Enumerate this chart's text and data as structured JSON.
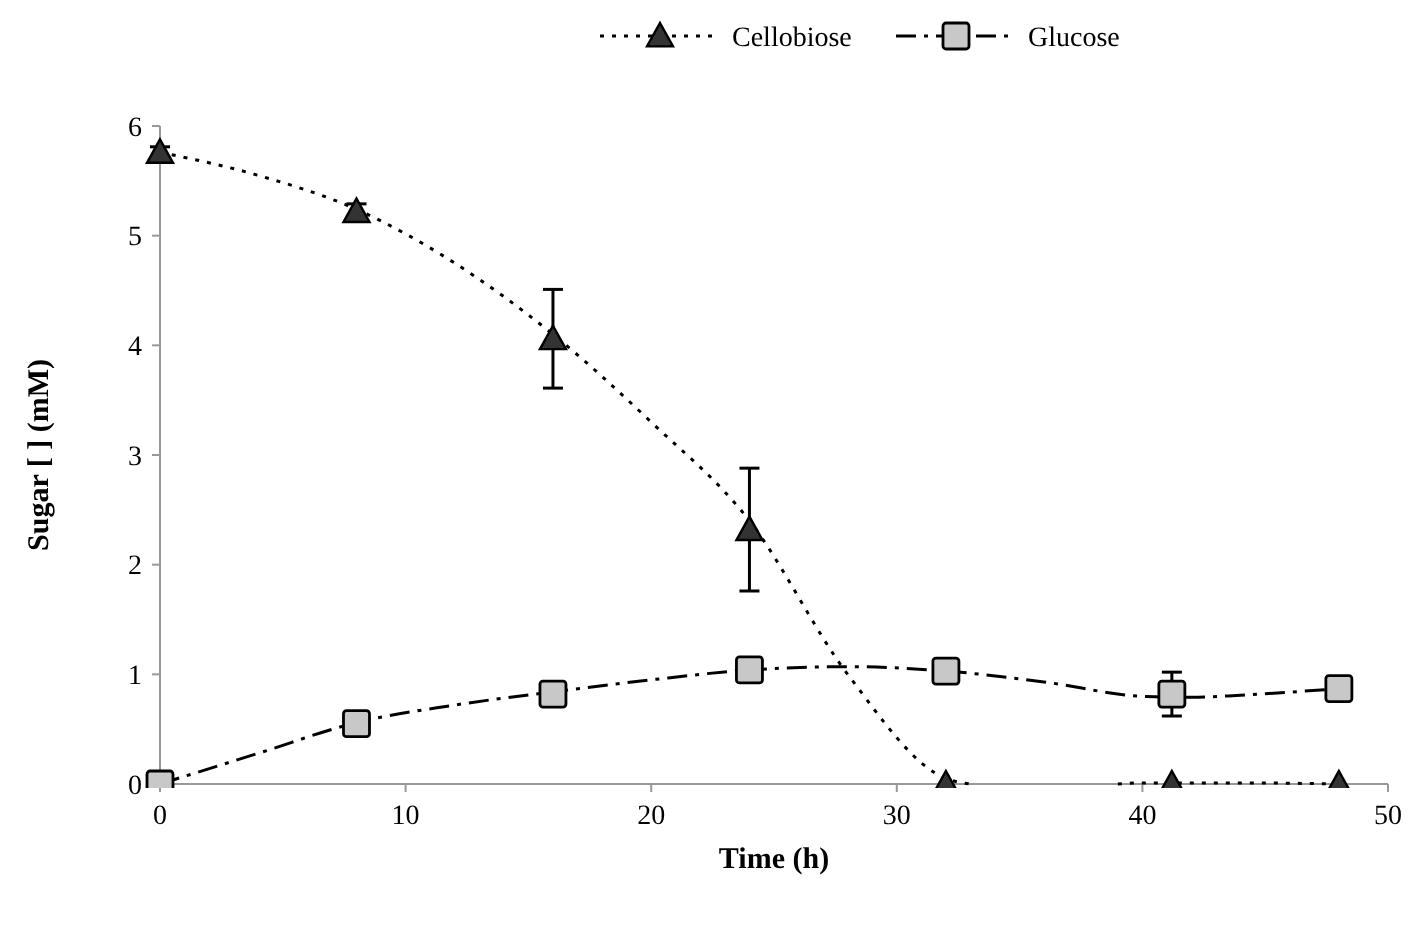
{
  "chart_data": {
    "type": "scatter",
    "xlabel": "Time (h)",
    "ylabel": "Sugar [ ] (mM)",
    "xlim": [
      0,
      50
    ],
    "xticks": [
      0,
      10,
      20,
      30,
      40,
      50
    ],
    "ylim": [
      0,
      6
    ],
    "yticks": [
      0,
      1,
      2,
      3,
      4,
      5,
      6
    ],
    "legend": "top",
    "grid": false,
    "series": [
      {
        "name": "Cellobiose",
        "marker": "triangle",
        "line_style": "dotted",
        "color": "#333333",
        "x": [
          0,
          8,
          16,
          24,
          32,
          41.2,
          48
        ],
        "values": [
          5.76,
          5.22,
          4.06,
          2.32,
          0,
          0,
          0
        ],
        "errors": [
          0.05,
          0.07,
          0.45,
          0.56,
          null,
          null,
          null
        ]
      },
      {
        "name": "Glucose",
        "marker": "square",
        "line_style": "dashdot",
        "color": "#c8c8c8",
        "x": [
          0,
          8,
          16,
          24,
          32,
          41.2,
          48
        ],
        "values": [
          0,
          0.55,
          0.82,
          1.04,
          1.03,
          0.82,
          0.87
        ],
        "errors": [
          null,
          null,
          null,
          null,
          null,
          0.2,
          null
        ]
      },
      {
        "type": "line",
        "line_style": "dotted",
        "color": "#000000",
        "x": [
          0,
          4,
          8,
          12,
          16,
          20,
          24,
          28,
          32,
          33,
          36,
          39,
          40,
          44,
          48
        ],
        "values": [
          5.76,
          5.55,
          5.24,
          4.75,
          4.1,
          3.3,
          2.4,
          1.0,
          0.05,
          0,
          null,
          0,
          0.01,
          0.01,
          0
        ]
      },
      {
        "type": "line",
        "line_style": "dashdot",
        "color": "#000000",
        "x": [
          0,
          4,
          8,
          12,
          16,
          20,
          24,
          28,
          32,
          36,
          40,
          42,
          44,
          48
        ],
        "values": [
          0,
          0.28,
          0.56,
          0.72,
          0.84,
          0.95,
          1.04,
          1.07,
          1.03,
          0.93,
          0.8,
          0.79,
          0.81,
          0.87
        ]
      }
    ]
  }
}
